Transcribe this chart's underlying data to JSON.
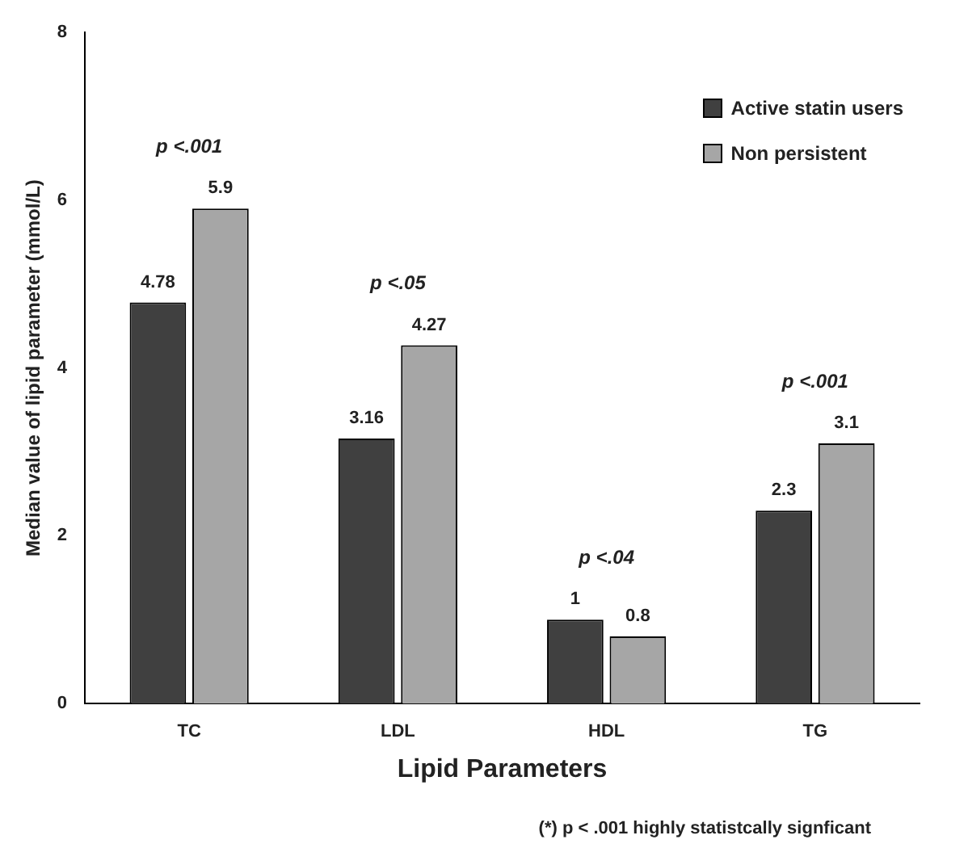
{
  "chart_data": {
    "type": "bar",
    "categories": [
      "TC",
      "LDL",
      "HDL",
      "TG"
    ],
    "series": [
      {
        "name": "Active statin users",
        "color": "#404040",
        "values": [
          4.78,
          3.16,
          1,
          2.3
        ]
      },
      {
        "name": "Non persistent",
        "color": "#a6a6a6",
        "values": [
          5.9,
          4.27,
          0.8,
          3.1
        ]
      }
    ],
    "xlabel": "Lipid Parameters",
    "ylabel": "Median value of lipid parameter (mmol/L)",
    "ylim": [
      0,
      8
    ],
    "yticks": [
      0,
      2,
      4,
      6,
      8
    ],
    "grid": false,
    "legend": "top right",
    "data_labels": true,
    "annotations": [
      "p <.001",
      "p <.05",
      "p <.04",
      "p <.001",
      "(*) p < .001 highly statistcally signficant"
    ]
  }
}
